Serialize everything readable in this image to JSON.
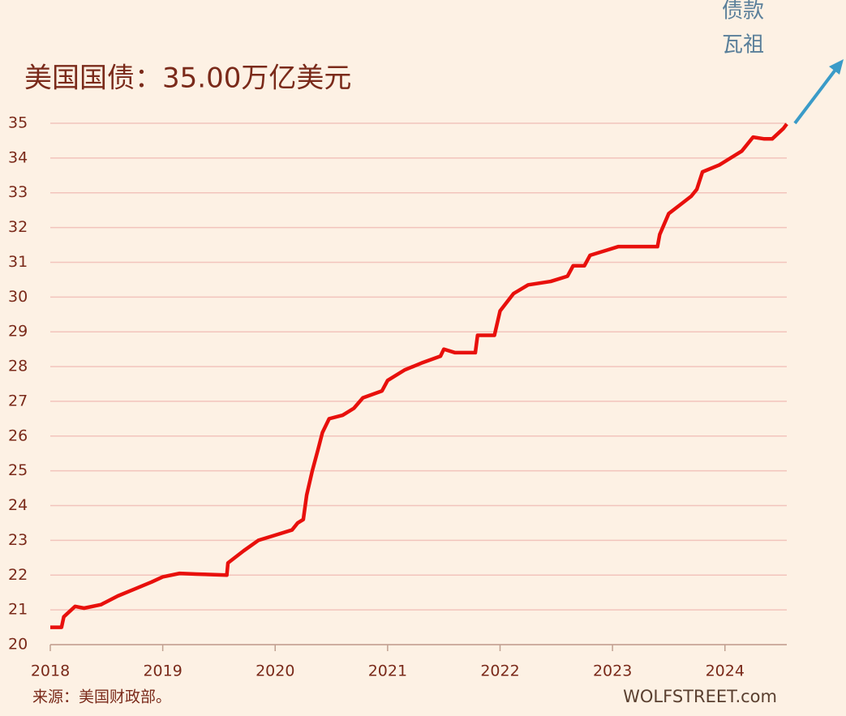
{
  "chart_data": {
    "type": "line",
    "title": "美国国债：35.00万亿美元",
    "annotation_lines": [
      "债款",
      "瓦祖"
    ],
    "source": "来源：美国财政部。",
    "credit": "WOLFSTREET.com",
    "x": [
      2018.0,
      2018.1,
      2018.12,
      2018.22,
      2018.3,
      2018.45,
      2018.6,
      2018.75,
      2018.9,
      2019.0,
      2019.15,
      2019.3,
      2019.57,
      2019.58,
      2019.72,
      2019.85,
      2020.0,
      2020.15,
      2020.2,
      2020.25,
      2020.28,
      2020.33,
      2020.38,
      2020.42,
      2020.48,
      2020.6,
      2020.7,
      2020.78,
      2020.95,
      2021.0,
      2021.15,
      2021.3,
      2021.47,
      2021.5,
      2021.6,
      2021.78,
      2021.8,
      2021.95,
      2022.0,
      2022.12,
      2022.25,
      2022.45,
      2022.6,
      2022.65,
      2022.75,
      2022.8,
      2022.95,
      2023.05,
      2023.3,
      2023.4,
      2023.42,
      2023.5,
      2023.6,
      2023.7,
      2023.75,
      2023.8,
      2023.95,
      2024.05,
      2024.15,
      2024.25,
      2024.35,
      2024.42,
      2024.52,
      2024.55
    ],
    "series": [
      {
        "color": "#e8100c",
        "values": [
          20.5,
          20.5,
          20.8,
          21.1,
          21.05,
          21.15,
          21.4,
          21.6,
          21.8,
          21.95,
          22.05,
          22.03,
          22.0,
          22.35,
          22.7,
          23.0,
          23.15,
          23.3,
          23.5,
          23.6,
          24.3,
          25.0,
          25.6,
          26.1,
          26.5,
          26.6,
          26.8,
          27.1,
          27.3,
          27.6,
          27.9,
          28.1,
          28.3,
          28.5,
          28.4,
          28.4,
          28.9,
          28.9,
          29.6,
          30.1,
          30.35,
          30.45,
          30.6,
          30.9,
          30.9,
          31.2,
          31.35,
          31.45,
          31.45,
          31.45,
          31.8,
          32.4,
          32.65,
          32.9,
          33.1,
          33.6,
          33.8,
          34.0,
          34.2,
          34.6,
          34.55,
          34.55,
          34.85,
          34.98
        ]
      }
    ],
    "xlim": [
      2018,
      2024.55
    ],
    "xticks": [
      2018,
      2019,
      2020,
      2021,
      2022,
      2023,
      2024
    ],
    "ylim": [
      20,
      35
    ],
    "yticks": [
      20,
      21,
      22,
      23,
      24,
      25,
      26,
      27,
      28,
      29,
      30,
      31,
      32,
      33,
      34,
      35
    ],
    "grid": true
  }
}
